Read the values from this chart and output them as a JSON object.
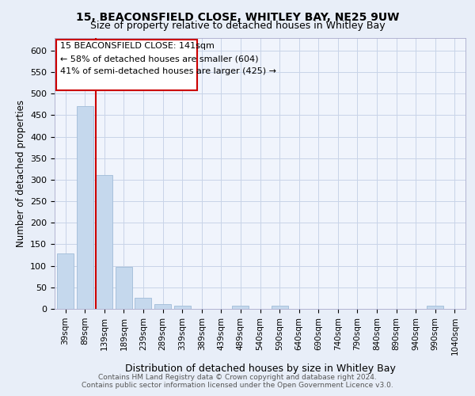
{
  "title_line1": "15, BEACONSFIELD CLOSE, WHITLEY BAY, NE25 9UW",
  "title_line2": "Size of property relative to detached houses in Whitley Bay",
  "xlabel": "Distribution of detached houses by size in Whitley Bay",
  "ylabel": "Number of detached properties",
  "footer_line1": "Contains HM Land Registry data © Crown copyright and database right 2024.",
  "footer_line2": "Contains public sector information licensed under the Open Government Licence v3.0.",
  "annotation_line1": "15 BEACONSFIELD CLOSE: 141sqm",
  "annotation_line2": "← 58% of detached houses are smaller (604)",
  "annotation_line3": "41% of semi-detached houses are larger (425) →",
  "property_size": 141,
  "bar_color": "#c5d8ed",
  "bar_edge_color": "#a0bcd8",
  "marker_color": "#cc0000",
  "grid_color": "#c8d4e8",
  "background_color": "#e8eef8",
  "plot_bg_color": "#f0f4fc",
  "categories": [
    "39sqm",
    "89sqm",
    "139sqm",
    "189sqm",
    "239sqm",
    "289sqm",
    "339sqm",
    "389sqm",
    "439sqm",
    "489sqm",
    "540sqm",
    "590sqm",
    "640sqm",
    "690sqm",
    "740sqm",
    "790sqm",
    "840sqm",
    "890sqm",
    "940sqm",
    "990sqm",
    "1040sqm"
  ],
  "values": [
    128,
    470,
    310,
    97,
    25,
    11,
    7,
    0,
    0,
    7,
    0,
    7,
    0,
    0,
    0,
    0,
    0,
    0,
    0,
    7,
    0
  ],
  "ylim": [
    0,
    630
  ],
  "yticks": [
    0,
    50,
    100,
    150,
    200,
    250,
    300,
    350,
    400,
    450,
    500,
    550,
    600
  ],
  "annotation_box_color": "#ffffff",
  "annotation_box_edge": "#cc0000"
}
